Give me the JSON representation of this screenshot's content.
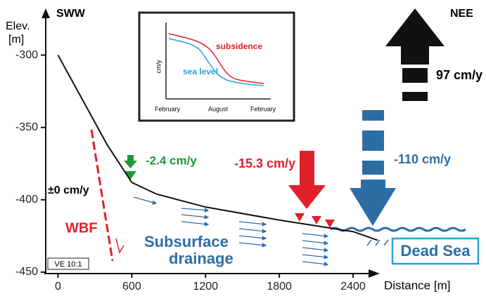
{
  "chart_data": {
    "type": "line",
    "y_label": [
      "Elev.",
      "[m]"
    ],
    "x_label": "Distance [m]",
    "x": [
      0,
      200,
      400,
      600,
      800,
      1200,
      1800,
      2400,
      2600
    ],
    "values": [
      -300,
      -331,
      -362,
      -388,
      -396,
      -405,
      -414,
      -422,
      -428
    ],
    "color": "#111111",
    "xlim": [
      -100,
      2600
    ],
    "ylim": [
      -450,
      -275
    ],
    "xticks": [
      0,
      600,
      1200,
      1800,
      2400
    ],
    "yticks": [
      -300,
      -350,
      -400,
      -450
    ],
    "annotations": {
      "left_direction": "SWW",
      "right_direction": "NEE",
      "uplift_rate": "97 cm/y",
      "rate_green": "-2.4 cm/y",
      "rate_zero": "±0 cm/y",
      "rate_red": "-15.3 cm/y",
      "rate_blue": "-110 cm/y",
      "fault": "WBF",
      "drainage": [
        "Subsurface",
        "drainage"
      ],
      "lake": "Dead Sea",
      "exaggeration": "VE 10:1"
    },
    "inset": {
      "y_label": "cm/y",
      "curves": [
        "subsidence",
        "sea level"
      ],
      "x_labels": [
        "February",
        "August",
        "February"
      ]
    }
  }
}
